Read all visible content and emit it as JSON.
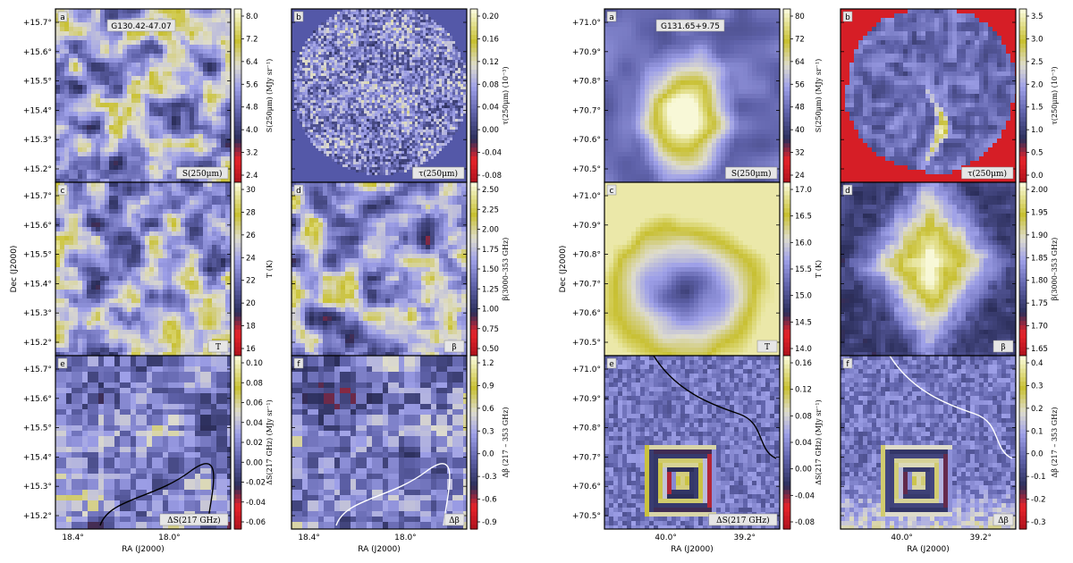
{
  "figure": {
    "groups": [
      {
        "id": "g1",
        "field_label": "G130.42-47.07",
        "dec_ticks": [
          "+15.7°",
          "+15.6°",
          "+15.5°",
          "+15.4°",
          "+15.3°",
          "+15.2°"
        ],
        "ra_ticks": [
          "18.4°",
          "18.0°"
        ],
        "dec_label": "Dec (J2000)",
        "ra_label": "RA (J2000)",
        "panels": [
          {
            "letter": "a",
            "tag": "S(250μm)",
            "cbar_label": "S(250μm) (MJy sr⁻¹)",
            "cbar_ticks": [
              "8.0",
              "7.2",
              "6.4",
              "5.6",
              "4.8",
              "4.0",
              "3.2",
              "2.4"
            ],
            "colormap": "rbwy",
            "style": "blob"
          },
          {
            "letter": "b",
            "tag": "τ(250μm)",
            "cbar_label": "τ(250μm) (10⁻³)",
            "cbar_ticks": [
              "0.20",
              "0.16",
              "0.12",
              "0.08",
              "0.04",
              "0.00",
              "-0.04",
              "-0.08"
            ],
            "colormap": "rbwy",
            "style": "noise"
          },
          {
            "letter": "c",
            "tag": "T",
            "cbar_label": "T (K)",
            "cbar_ticks": [
              "30",
              "28",
              "26",
              "24",
              "22",
              "20",
              "18",
              "16"
            ],
            "colormap": "rbwy",
            "style": "blob"
          },
          {
            "letter": "d",
            "tag": "β",
            "cbar_label": "β(3000–353 GHz)",
            "cbar_ticks": [
              "2.50",
              "2.25",
              "2.00",
              "1.75",
              "1.50",
              "1.25",
              "1.00",
              "0.75",
              "0.50"
            ],
            "colormap": "rbwy",
            "style": "blob"
          },
          {
            "letter": "e",
            "tag": "ΔS(217 GHz)",
            "cbar_label": "ΔS(217 GHz) (MJy sr⁻¹)",
            "cbar_ticks": [
              "0.10",
              "0.08",
              "0.06",
              "0.04",
              "0.02",
              "0.00",
              "-0.02",
              "-0.04",
              "-0.06"
            ],
            "colormap": "rbwy",
            "style": "blocky",
            "contour": "black"
          },
          {
            "letter": "f",
            "tag": "Δβ",
            "cbar_label": "Δβ (217 – 353 GHz)",
            "cbar_ticks": [
              "1.2",
              "0.9",
              "0.6",
              "0.3",
              "0.0",
              "-0.3",
              "-0.6",
              "-0.9"
            ],
            "colormap": "rbwy",
            "style": "blocky",
            "contour": "white"
          }
        ]
      },
      {
        "id": "g2",
        "field_label": "G131.65+9.75",
        "dec_ticks": [
          "+71.0°",
          "+70.9°",
          "+70.8°",
          "+70.7°",
          "+70.6°",
          "+70.5°"
        ],
        "ra_ticks": [
          "40.0°",
          "39.2°"
        ],
        "dec_label": "Dec (J2000)",
        "ra_label": "RA (J2000)",
        "panels": [
          {
            "letter": "a",
            "tag": "S(250μm)",
            "cbar_label": "S(250μm) (MJy sr⁻¹)",
            "cbar_ticks": [
              "80",
              "72",
              "64",
              "56",
              "48",
              "40",
              "32",
              "24"
            ],
            "colormap": "rbwy",
            "style": "core"
          },
          {
            "letter": "b",
            "tag": "τ(250μm)",
            "cbar_label": "τ(250μm) (10⁻³)",
            "cbar_ticks": [
              "3.5",
              "3.0",
              "2.5",
              "2.0",
              "1.5",
              "1.0",
              "0.5",
              "0.0"
            ],
            "colormap": "rbwy",
            "style": "filament"
          },
          {
            "letter": "c",
            "tag": "T",
            "cbar_label": "T (K)",
            "cbar_ticks": [
              "17.0",
              "16.5",
              "16.0",
              "15.5",
              "15.0",
              "14.5",
              "14.0"
            ],
            "colormap": "rbwy",
            "style": "coldcore"
          },
          {
            "letter": "d",
            "tag": "β",
            "cbar_label": "β(3000–353 GHz)",
            "cbar_ticks": [
              "2.00",
              "1.95",
              "1.90",
              "1.85",
              "1.80",
              "1.75",
              "1.70",
              "1.65"
            ],
            "colormap": "rbwy",
            "style": "betamap"
          },
          {
            "letter": "e",
            "tag": "ΔS(217 GHz)",
            "cbar_label": "ΔS(217 GHz) (MJy sr⁻¹)",
            "cbar_ticks": [
              "0.16",
              "0.12",
              "0.08",
              "0.04",
              "0.00",
              "-0.04",
              "-0.08"
            ],
            "colormap": "rbwy",
            "style": "ring",
            "contour": "black"
          },
          {
            "letter": "f",
            "tag": "Δβ",
            "cbar_label": "Δβ (217 – 353 GHz)",
            "cbar_ticks": [
              "0.4",
              "0.3",
              "0.2",
              "0.1",
              "0.0",
              "-0.1",
              "-0.2",
              "-0.3"
            ],
            "colormap": "rbwy",
            "style": "ring2",
            "contour": "white"
          }
        ]
      }
    ],
    "colors": {
      "red": "#e8232a",
      "navy": "#2b2e5a",
      "lavender": "#9ea0e8",
      "pale": "#e4e2c8",
      "yellow": "#c6c02c",
      "bright": "#f4f4d0"
    }
  }
}
